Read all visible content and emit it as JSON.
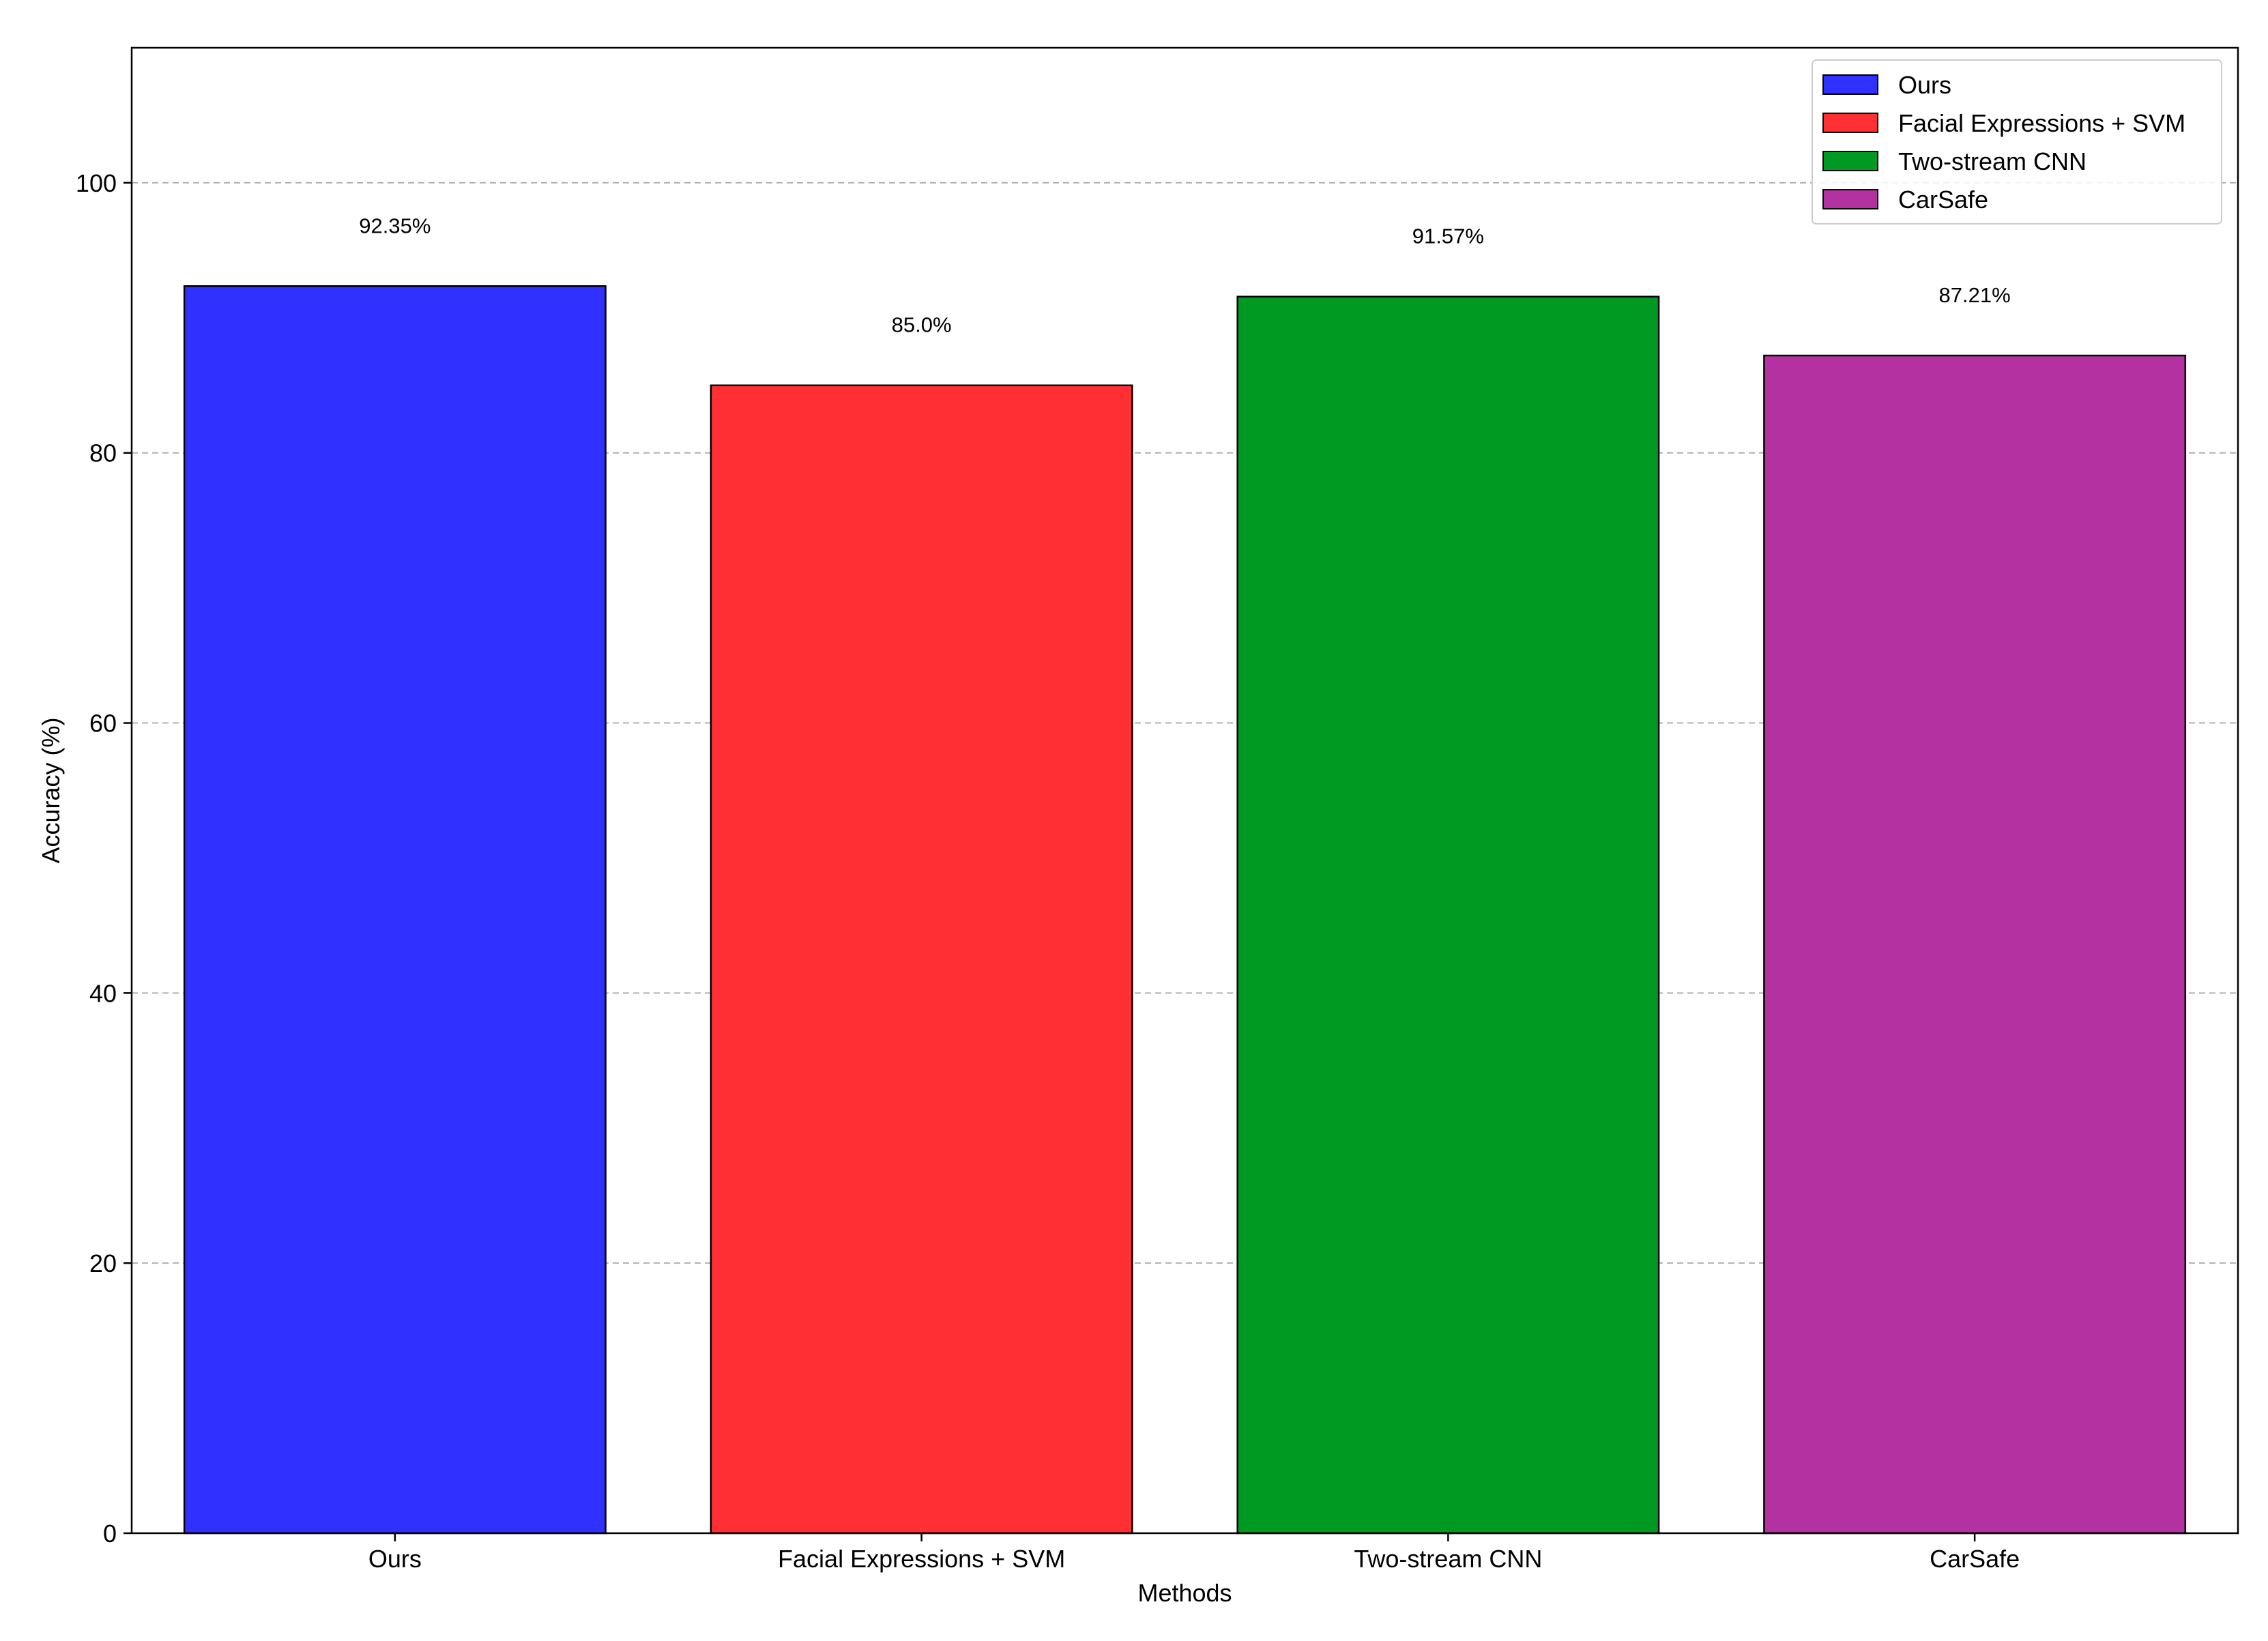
{
  "chart_data": {
    "type": "bar",
    "title": "",
    "xlabel": "Methods",
    "ylabel": "Accuracy (%)",
    "categories": [
      "Ours",
      "Facial Expressions + SVM",
      "Two-stream CNN",
      "CarSafe"
    ],
    "values": [
      92.35,
      85.0,
      91.57,
      87.21
    ],
    "value_labels": [
      "92.35%",
      "85.0%",
      "91.57%",
      "87.21%"
    ],
    "colors": [
      "#3131ff",
      "#ff2f33",
      "#009a22",
      "#b331a0"
    ],
    "ylim": [
      0,
      110
    ],
    "yticks": [
      0,
      20,
      40,
      60,
      80,
      100
    ],
    "grid": "y-dashed",
    "legend": {
      "placement": "top-right",
      "entries": [
        "Ours",
        "Facial Expressions + SVM",
        "Two-stream CNN",
        "CarSafe"
      ]
    }
  }
}
